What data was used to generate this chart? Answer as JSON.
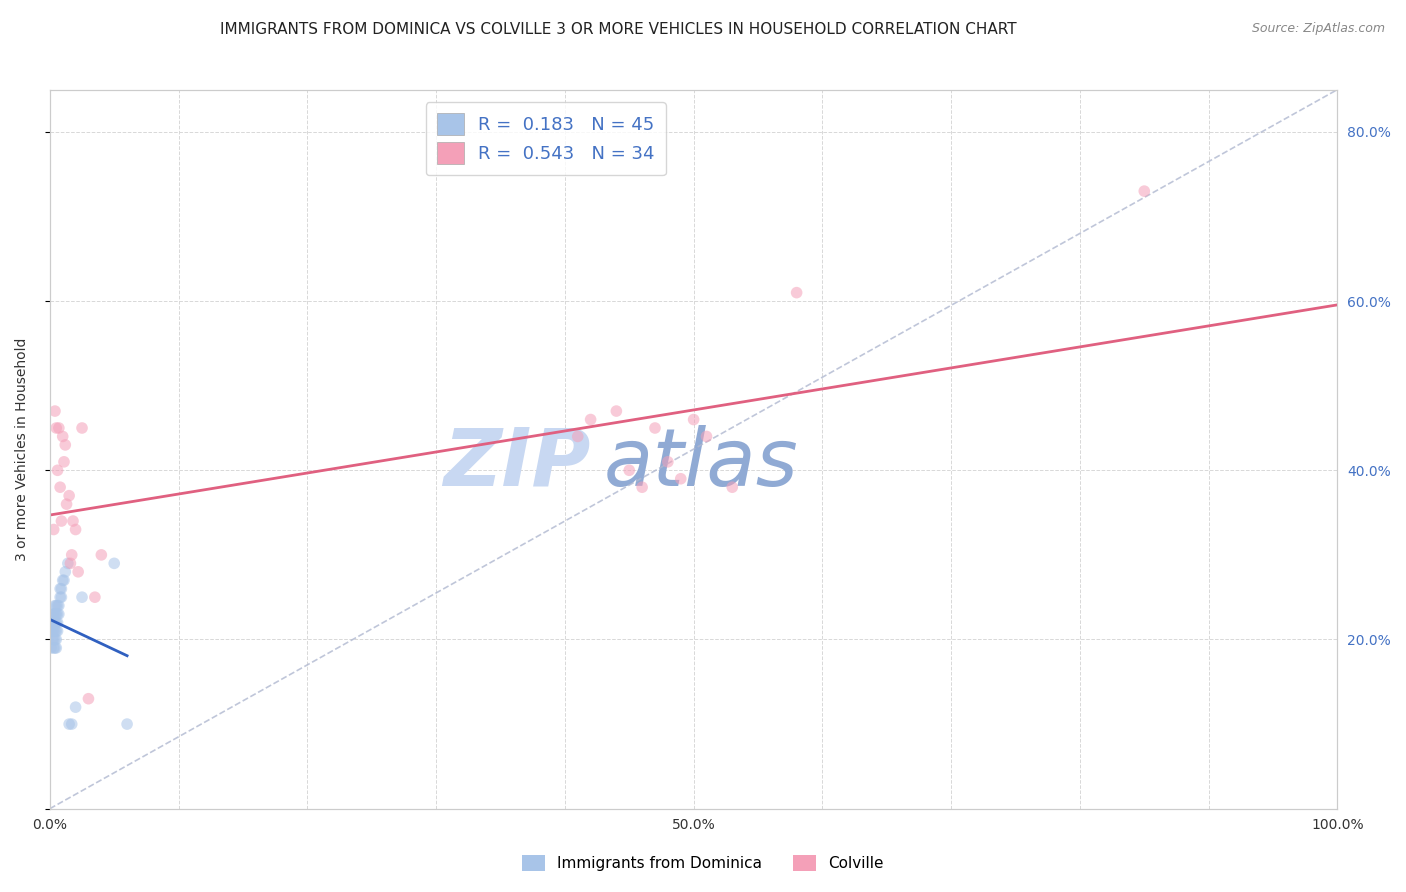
{
  "title": "IMMIGRANTS FROM DOMINICA VS COLVILLE 3 OR MORE VEHICLES IN HOUSEHOLD CORRELATION CHART",
  "source": "Source: ZipAtlas.com",
  "ylabel": "3 or more Vehicles in Household",
  "series1_label": "Immigrants from Dominica",
  "series2_label": "Colville",
  "series1_R": 0.183,
  "series1_N": 45,
  "series2_R": 0.543,
  "series2_N": 34,
  "series1_color": "#a8c4e8",
  "series2_color": "#f4a0b8",
  "series1_line_color": "#3060c0",
  "series2_line_color": "#e06080",
  "series1_x": [
    0.001,
    0.001,
    0.001,
    0.002,
    0.002,
    0.002,
    0.002,
    0.003,
    0.003,
    0.003,
    0.003,
    0.003,
    0.003,
    0.004,
    0.004,
    0.004,
    0.004,
    0.004,
    0.004,
    0.005,
    0.005,
    0.005,
    0.005,
    0.005,
    0.005,
    0.006,
    0.006,
    0.006,
    0.006,
    0.007,
    0.007,
    0.008,
    0.008,
    0.009,
    0.009,
    0.01,
    0.011,
    0.012,
    0.014,
    0.015,
    0.017,
    0.02,
    0.025,
    0.05,
    0.06
  ],
  "series1_y": [
    0.19,
    0.21,
    0.22,
    0.2,
    0.21,
    0.22,
    0.23,
    0.19,
    0.2,
    0.21,
    0.22,
    0.22,
    0.23,
    0.19,
    0.2,
    0.21,
    0.22,
    0.23,
    0.24,
    0.19,
    0.2,
    0.21,
    0.22,
    0.23,
    0.24,
    0.21,
    0.22,
    0.23,
    0.24,
    0.23,
    0.24,
    0.25,
    0.26,
    0.25,
    0.26,
    0.27,
    0.27,
    0.28,
    0.29,
    0.1,
    0.1,
    0.12,
    0.25,
    0.29,
    0.1
  ],
  "series2_x": [
    0.003,
    0.004,
    0.005,
    0.006,
    0.007,
    0.008,
    0.009,
    0.01,
    0.011,
    0.012,
    0.013,
    0.015,
    0.016,
    0.017,
    0.018,
    0.02,
    0.022,
    0.025,
    0.03,
    0.035,
    0.04,
    0.41,
    0.42,
    0.44,
    0.45,
    0.46,
    0.47,
    0.48,
    0.49,
    0.5,
    0.51,
    0.53,
    0.58,
    0.85
  ],
  "series2_y": [
    0.33,
    0.47,
    0.45,
    0.4,
    0.45,
    0.38,
    0.34,
    0.44,
    0.41,
    0.43,
    0.36,
    0.37,
    0.29,
    0.3,
    0.34,
    0.33,
    0.28,
    0.45,
    0.13,
    0.25,
    0.3,
    0.44,
    0.46,
    0.47,
    0.4,
    0.38,
    0.45,
    0.41,
    0.39,
    0.46,
    0.44,
    0.38,
    0.61,
    0.73
  ],
  "xlim": [
    0.0,
    1.0
  ],
  "ylim": [
    0.0,
    0.85
  ],
  "xticks": [
    0.0,
    0.1,
    0.2,
    0.3,
    0.4,
    0.5,
    0.6,
    0.7,
    0.8,
    0.9,
    1.0
  ],
  "yticks": [
    0.0,
    0.2,
    0.4,
    0.6,
    0.8
  ],
  "right_ytick_labels": [
    "",
    "20.0%",
    "40.0%",
    "60.0%",
    "80.0%"
  ],
  "xtick_labels": [
    "0.0%",
    "",
    "",
    "",
    "",
    "50.0%",
    "",
    "",
    "",
    "",
    "100.0%"
  ],
  "watermark_zip": "ZIP",
  "watermark_atlas": "atlas",
  "watermark_color_zip": "#c8d8f0",
  "watermark_color_atlas": "#90aad8",
  "background_color": "#ffffff",
  "grid_color": "#d8d8d8",
  "title_fontsize": 11,
  "axis_label_fontsize": 10,
  "tick_fontsize": 10,
  "legend_fontsize": 13,
  "marker_size": 70,
  "marker_alpha": 0.55,
  "legend_R_color": "black",
  "legend_N_color": "#4472c4"
}
